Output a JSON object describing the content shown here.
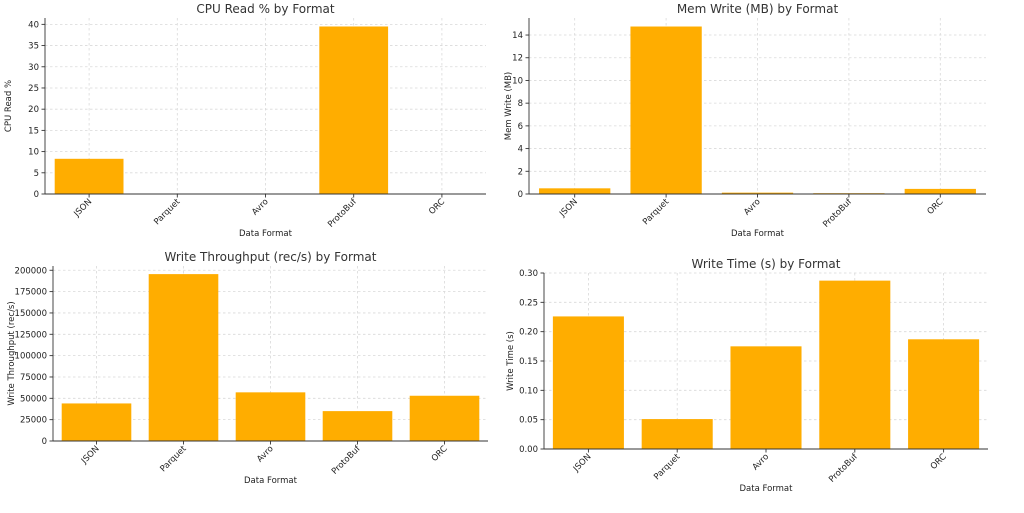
{
  "colors": {
    "bar": "#ffad00"
  },
  "chart_data": [
    {
      "type": "bar",
      "title": "CPU Read % by Format",
      "xlabel": "Data Format",
      "ylabel": "CPU Read %",
      "categories": [
        "JSON",
        "Parquet",
        "Avro",
        "ProtoBuf",
        "ORC"
      ],
      "values": [
        8.3,
        0,
        0,
        39.5,
        0
      ],
      "ylim": [
        0,
        41.5
      ],
      "yticks": [
        0,
        5,
        10,
        15,
        20,
        25,
        30,
        35,
        40
      ],
      "ytick_labels": [
        "0",
        "5",
        "10",
        "15",
        "20",
        "25",
        "30",
        "35",
        "40"
      ],
      "grid": true
    },
    {
      "type": "bar",
      "title": "Mem Write (MB) by Format",
      "xlabel": "Data Format",
      "ylabel": "Mem Write (MB)",
      "categories": [
        "JSON",
        "Parquet",
        "Avro",
        "ProtoBuf",
        "ORC"
      ],
      "values": [
        0.5,
        14.75,
        0.12,
        0.03,
        0.45
      ],
      "ylim": [
        0,
        15.5
      ],
      "yticks": [
        0,
        2,
        4,
        6,
        8,
        10,
        12,
        14
      ],
      "ytick_labels": [
        "0",
        "2",
        "4",
        "6",
        "8",
        "10",
        "12",
        "14"
      ],
      "grid": true
    },
    {
      "type": "bar",
      "title": "Write Throughput (rec/s) by Format",
      "xlabel": "Data Format",
      "ylabel": "Write Throughput (rec/s)",
      "categories": [
        "JSON",
        "Parquet",
        "Avro",
        "ProtoBuf",
        "ORC"
      ],
      "values": [
        44000,
        195500,
        57000,
        35000,
        53000
      ],
      "ylim": [
        0,
        205000
      ],
      "yticks": [
        0,
        25000,
        50000,
        75000,
        100000,
        125000,
        150000,
        175000,
        200000
      ],
      "ytick_labels": [
        "0",
        "25000",
        "50000",
        "75000",
        "100000",
        "125000",
        "150000",
        "175000",
        "200000"
      ],
      "grid": true
    },
    {
      "type": "bar",
      "title": "Write Time (s) by Format",
      "xlabel": "Data Format",
      "ylabel": "Write Time (s)",
      "categories": [
        "JSON",
        "Parquet",
        "Avro",
        "ProtoBuf",
        "ORC"
      ],
      "values": [
        0.226,
        0.051,
        0.175,
        0.287,
        0.187
      ],
      "ylim": [
        0,
        0.3
      ],
      "yticks": [
        0,
        0.05,
        0.1,
        0.15,
        0.2,
        0.25,
        0.3
      ],
      "ytick_labels": [
        "0.00",
        "0.05",
        "0.10",
        "0.15",
        "0.20",
        "0.25",
        "0.30"
      ],
      "grid": true
    }
  ]
}
